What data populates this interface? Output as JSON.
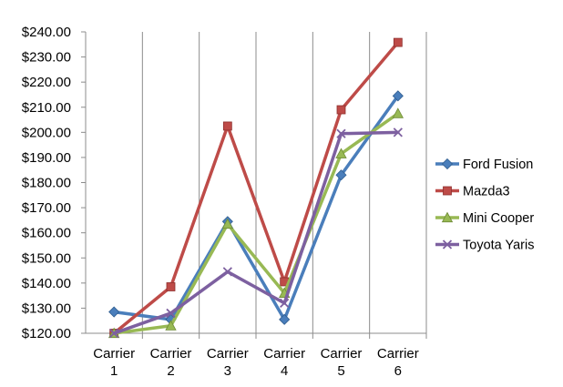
{
  "chart_data": {
    "type": "line",
    "title": "",
    "xlabel": "",
    "ylabel": "",
    "categories": [
      [
        "Carrier",
        "1"
      ],
      [
        "Carrier",
        "2"
      ],
      [
        "Carrier",
        "3"
      ],
      [
        "Carrier",
        "4"
      ],
      [
        "Carrier",
        "5"
      ],
      [
        "Carrier",
        "6"
      ]
    ],
    "ylim": [
      120,
      240
    ],
    "yticks": [
      120,
      130,
      140,
      150,
      160,
      170,
      180,
      190,
      200,
      210,
      220,
      230,
      240
    ],
    "ytick_labels": [
      "$120.00",
      "$130.00",
      "$140.00",
      "$150.00",
      "$160.00",
      "$170.00",
      "$180.00",
      "$190.00",
      "$200.00",
      "$210.00",
      "$220.00",
      "$230.00",
      "$240.00"
    ],
    "grid": "vertical",
    "legend": "right",
    "series": [
      {
        "name": "Ford Fusion",
        "color": "#4a7ebb",
        "marker": "diamond",
        "values": [
          128.5,
          125.5,
          164.5,
          125.5,
          183,
          214.5
        ]
      },
      {
        "name": "Mazda3",
        "color": "#be4b48",
        "marker": "square",
        "values": [
          120,
          138.5,
          202.5,
          140.5,
          209,
          235.8
        ]
      },
      {
        "name": "Mini Cooper",
        "color": "#98b954",
        "marker": "triangle",
        "values": [
          120,
          123,
          163.5,
          136,
          191.5,
          207.5
        ]
      },
      {
        "name": "Toyota Yaris",
        "color": "#7d60a0",
        "marker": "x",
        "values": [
          120,
          128,
          144.5,
          132,
          199.5,
          200
        ]
      }
    ]
  }
}
